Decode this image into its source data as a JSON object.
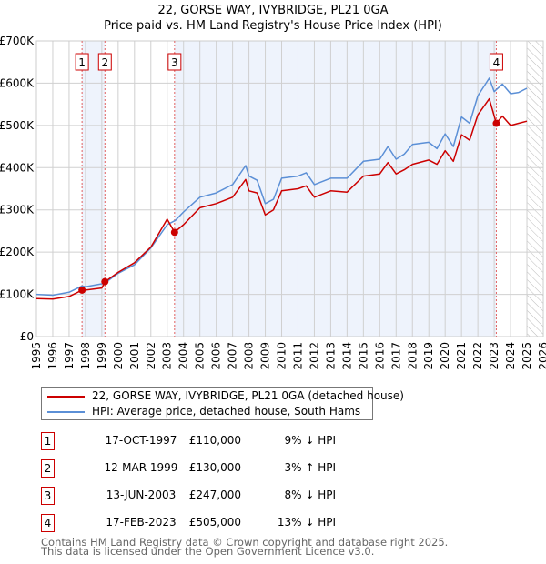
{
  "chart_data": {
    "type": "line",
    "title": "22, GORSE WAY, IVYBRIDGE, PL21 0GA",
    "subtitle": "Price paid vs. HM Land Registry's House Price Index (HPI)",
    "xlim": [
      1995,
      2026
    ],
    "ylim": [
      0,
      700000
    ],
    "x_ticks": [
      "1995",
      "1996",
      "1997",
      "1998",
      "1999",
      "2000",
      "2001",
      "2002",
      "2003",
      "2004",
      "2005",
      "2006",
      "2007",
      "2008",
      "2009",
      "2010",
      "2011",
      "2012",
      "2013",
      "2014",
      "2015",
      "2016",
      "2017",
      "2018",
      "2019",
      "2020",
      "2021",
      "2022",
      "2023",
      "2024",
      "2025",
      "2026"
    ],
    "y_ticks": [
      {
        "v": 0,
        "label": "£0"
      },
      {
        "v": 100000,
        "label": "£100K"
      },
      {
        "v": 200000,
        "label": "£200K"
      },
      {
        "v": 300000,
        "label": "£300K"
      },
      {
        "v": 400000,
        "label": "£400K"
      },
      {
        "v": 500000,
        "label": "£500K"
      },
      {
        "v": 600000,
        "label": "£600K"
      },
      {
        "v": 700000,
        "label": "£700K"
      }
    ],
    "grid": true,
    "forecast_hatch_from": 2025,
    "series": [
      {
        "name": "22, GORSE WAY, IVYBRIDGE, PL21 0GA (detached house)",
        "color": "#cc0000",
        "x": [
          1995,
          1996,
          1997,
          1997.8,
          1998,
          1999,
          1999.2,
          2000,
          2001,
          2002,
          2003,
          2003.45,
          2004,
          2005,
          2006,
          2007,
          2007.8,
          2008,
          2008.5,
          2009,
          2009.5,
          2010,
          2011,
          2011.5,
          2012,
          2013,
          2014,
          2015,
          2016,
          2016.5,
          2017,
          2017.5,
          2018,
          2019,
          2019.5,
          2020,
          2020.5,
          2021,
          2021.5,
          2022,
          2022.7,
          2023.13,
          2023.5,
          2024,
          2024.5,
          2025
        ],
        "y": [
          90,
          89,
          95,
          110,
          110,
          115,
          130,
          152,
          175,
          212,
          278,
          247,
          265,
          305,
          315,
          330,
          372,
          345,
          340,
          288,
          300,
          345,
          350,
          357,
          330,
          345,
          342,
          380,
          385,
          412,
          385,
          395,
          408,
          418,
          408,
          440,
          415,
          478,
          465,
          525,
          563,
          505,
          522,
          500,
          505,
          510
        ]
      },
      {
        "name": "HPI: Average price, detached house, South Hams",
        "color": "#5b8fd6",
        "x": [
          1995,
          1996,
          1997,
          1997.8,
          1998,
          1999,
          1999.2,
          2000,
          2001,
          2002,
          2003,
          2003.5,
          2004,
          2005,
          2006,
          2007,
          2007.8,
          2008,
          2008.5,
          2009,
          2009.5,
          2010,
          2011,
          2011.5,
          2012,
          2013,
          2014,
          2015,
          2016,
          2016.5,
          2017,
          2017.5,
          2018,
          2019,
          2019.5,
          2020,
          2020.5,
          2021,
          2021.5,
          2022,
          2022.7,
          2023,
          2023.5,
          2024,
          2024.5,
          2025
        ],
        "y": [
          100,
          98,
          105,
          120,
          118,
          125,
          127,
          150,
          170,
          210,
          265,
          275,
          295,
          330,
          340,
          360,
          405,
          380,
          370,
          315,
          325,
          375,
          380,
          388,
          360,
          375,
          375,
          415,
          420,
          450,
          420,
          432,
          455,
          460,
          445,
          480,
          450,
          520,
          505,
          570,
          612,
          580,
          598,
          575,
          578,
          588
        ]
      }
    ],
    "y_unit_multiplier": 1000,
    "sales": [
      {
        "label": "1",
        "x": 1997.79
      },
      {
        "label": "2",
        "x": 1999.19
      },
      {
        "label": "3",
        "x": 2003.45
      },
      {
        "label": "4",
        "x": 2023.13
      }
    ],
    "sale_values": [
      110000,
      130000,
      247000,
      505000
    ],
    "shaded_ranges": [
      [
        1997.79,
        1999.19
      ],
      [
        2003.45,
        2023.13
      ]
    ]
  },
  "legend": [
    "22, GORSE WAY, IVYBRIDGE, PL21 0GA (detached house)",
    "HPI: Average price, detached house, South Hams"
  ],
  "transactions": [
    {
      "n": "1",
      "date": "17-OCT-1997",
      "price": "£110,000",
      "hpi": "9% ↓ HPI"
    },
    {
      "n": "2",
      "date": "12-MAR-1999",
      "price": "£130,000",
      "hpi": "3% ↑ HPI"
    },
    {
      "n": "3",
      "date": "13-JUN-2003",
      "price": "£247,000",
      "hpi": "8% ↓ HPI"
    },
    {
      "n": "4",
      "date": "17-FEB-2023",
      "price": "£505,000",
      "hpi": "13% ↓ HPI"
    }
  ],
  "footer": [
    "Contains HM Land Registry data © Crown copyright and database right 2025.",
    "This data is licensed under the Open Government Licence v3.0."
  ]
}
